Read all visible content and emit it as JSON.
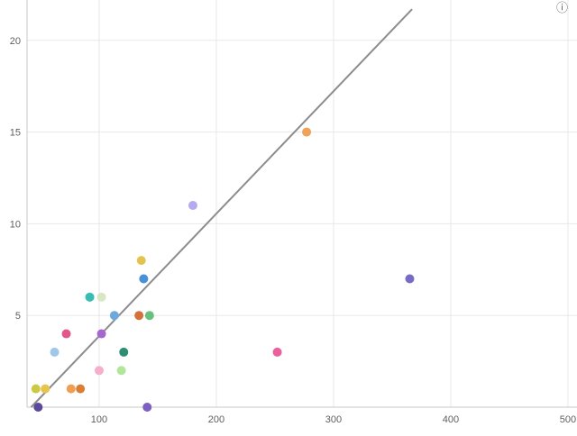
{
  "chrome": {
    "info_icon": "ⓘ"
  },
  "chart_data": {
    "type": "scatter",
    "title": "",
    "xlabel": "",
    "ylabel": "",
    "legend": "none",
    "grid": true,
    "x_domain": [
      38.5,
      507.7
    ],
    "y_domain": [
      0,
      22.2
    ],
    "x_ticks": [
      100,
      200,
      300,
      400,
      500
    ],
    "y_ticks": [
      5,
      10,
      15,
      20
    ],
    "colors": {
      "grid": "#e8e8e8",
      "axis": "#c9c9c9",
      "tick_text": "#605e5c"
    },
    "point_radius": 5,
    "trendline": {
      "x1": 42,
      "y1": 0,
      "x2": 367,
      "y2": 21.7,
      "color": "#8c8c8c",
      "width": 2
    },
    "points": [
      {
        "x": 46,
        "y": 1,
        "color": "#c9c943"
      },
      {
        "x": 54,
        "y": 1,
        "color": "#e6c44e"
      },
      {
        "x": 48,
        "y": 0,
        "color": "#5b4a9b"
      },
      {
        "x": 76,
        "y": 1,
        "color": "#f09e52"
      },
      {
        "x": 84,
        "y": 1,
        "color": "#d97f35"
      },
      {
        "x": 62,
        "y": 3,
        "color": "#9ec7ea"
      },
      {
        "x": 72,
        "y": 4,
        "color": "#e2578b"
      },
      {
        "x": 92,
        "y": 6,
        "color": "#38bdb4"
      },
      {
        "x": 102,
        "y": 6,
        "color": "#d8e6c3"
      },
      {
        "x": 102,
        "y": 4,
        "color": "#a468cf"
      },
      {
        "x": 100,
        "y": 2,
        "color": "#f6aecb"
      },
      {
        "x": 113,
        "y": 5,
        "color": "#6ea9dd"
      },
      {
        "x": 119,
        "y": 2,
        "color": "#b2e69b"
      },
      {
        "x": 121,
        "y": 3,
        "color": "#2f8d72"
      },
      {
        "x": 134,
        "y": 5,
        "color": "#d4713b"
      },
      {
        "x": 136,
        "y": 8,
        "color": "#e4c44f"
      },
      {
        "x": 138,
        "y": 7,
        "color": "#4a90d9"
      },
      {
        "x": 141,
        "y": 0,
        "color": "#7e5fc4"
      },
      {
        "x": 143,
        "y": 5,
        "color": "#67c17d"
      },
      {
        "x": 180,
        "y": 11,
        "color": "#b4aaf0"
      },
      {
        "x": 252,
        "y": 3,
        "color": "#ea5f9c"
      },
      {
        "x": 277,
        "y": 15,
        "color": "#efa258"
      },
      {
        "x": 365,
        "y": 7,
        "color": "#766cc6"
      }
    ]
  }
}
